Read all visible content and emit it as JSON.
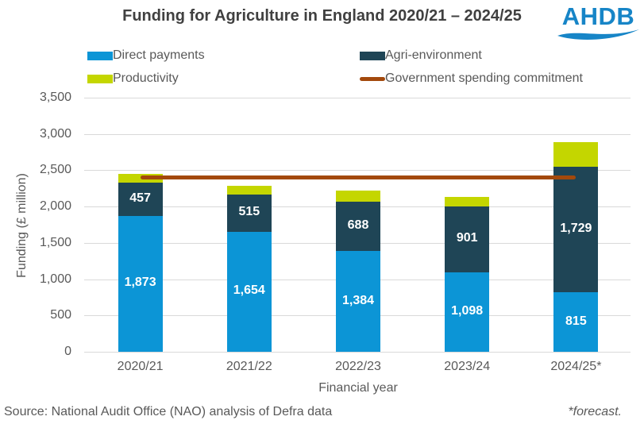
{
  "header": {
    "title": "Funding for Agriculture in England 2020/21 – 2024/25",
    "logo_text": "AHDB"
  },
  "colors": {
    "direct_payments": "#0C95D6",
    "agri_environment": "#1F4556",
    "productivity": "#C4D600",
    "commitment_line": "#A3490C",
    "logo_blue": "#1785C7",
    "title_text": "#404040",
    "axis_text": "#595959",
    "gridline": "#D9D9D9",
    "bar_label_text": "#FFFFFF"
  },
  "legend": {
    "items": [
      {
        "label": "Direct payments",
        "color": "#0C95D6",
        "type": "box"
      },
      {
        "label": "Productivity",
        "color": "#C4D600",
        "type": "box"
      },
      {
        "label": "Agri-environment",
        "color": "#1F4556",
        "type": "box"
      },
      {
        "label": "Government spending commitment",
        "color": "#A3490C",
        "type": "line"
      }
    ]
  },
  "chart_data": {
    "type": "bar",
    "subtype": "stacked",
    "title": "Funding for Agriculture in England 2020/21 – 2024/25",
    "categories": [
      "2020/21",
      "2021/22",
      "2022/23",
      "2023/24",
      "2024/25*"
    ],
    "series": [
      {
        "name": "Direct payments",
        "color": "#0C95D6",
        "values": [
          1873,
          1654,
          1384,
          1098,
          815
        ],
        "labels": [
          "1,873",
          "1,654",
          "1,384",
          "1,098",
          "815"
        ]
      },
      {
        "name": "Agri-environment",
        "color": "#1F4556",
        "values": [
          457,
          515,
          688,
          901,
          1729
        ],
        "labels": [
          "457",
          "515",
          "688",
          "901",
          "1,729"
        ]
      },
      {
        "name": "Productivity",
        "color": "#C4D600",
        "values": [
          121,
          120,
          151,
          132,
          345
        ],
        "labels": [
          "",
          "",
          "",
          "",
          ""
        ]
      }
    ],
    "reference_line": {
      "name": "Government spending commitment",
      "value": 2400,
      "color": "#A3490C"
    },
    "xlabel": "Financial year",
    "ylabel": "Funding (£ million)",
    "ylim": [
      0,
      3500
    ],
    "ytick_step": 500,
    "grid": true,
    "legend_position": "top"
  },
  "footer": {
    "source": "Source: National Audit Office (NAO) analysis of Defra data",
    "note": "*forecast."
  }
}
